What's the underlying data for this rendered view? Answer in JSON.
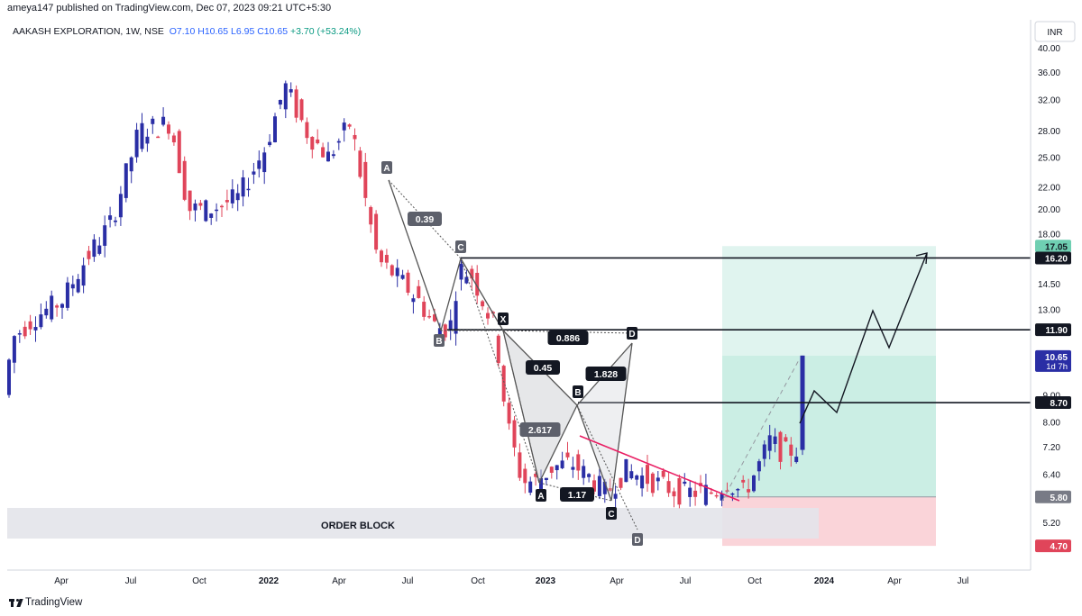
{
  "header": {
    "published_text": "ameya147 published on TradingView.com, Dec 07, 2023 09:21 UTC+5:30",
    "symbol": "AAKASH EXPLORATION, 1W, NSE",
    "ohlc": {
      "open": "O7.10",
      "high": "H10.65",
      "low": "L6.95",
      "close": "C10.65",
      "change": "+3.70 (+53.24%)"
    },
    "currency": "INR"
  },
  "footer": {
    "brand": "TradingView"
  },
  "colors": {
    "up": "#2a2ea5",
    "down": "#e0455a",
    "target_zone": "#b2e6d8",
    "stop_zone": "#f8c6cc",
    "order_block": "#d1d4dc"
  },
  "chart_data": {
    "type": "candlestick",
    "symbol": "AAKASH EXPLORATION",
    "timeframe": "1W",
    "exchange": "NSE",
    "y_axis": {
      "scale": "log",
      "ticks": [
        40.0,
        36.0,
        32.0,
        28.0,
        25.0,
        22.0,
        20.0,
        18.0,
        16.2,
        14.5,
        13.0,
        11.9,
        10.65,
        9.0,
        8.7,
        8.0,
        7.2,
        6.4,
        5.8,
        5.2,
        4.7
      ],
      "tick_labels": [
        "40.00",
        "36.00",
        "32.00",
        "28.00",
        "25.00",
        "22.00",
        "20.00",
        "18.00",
        "14.50",
        "13.00",
        "9.00",
        "8.00",
        "7.20",
        "6.40",
        "5.20"
      ]
    },
    "x_axis": {
      "tick_labels": [
        "Apr",
        "Jul",
        "Oct",
        "2022",
        "Apr",
        "Jul",
        "Oct",
        "2023",
        "Apr",
        "Jul",
        "Oct",
        "2024",
        "Apr",
        "Jul"
      ]
    },
    "price_tags": [
      {
        "value": "17.05",
        "color": "#6fcfb2",
        "text_color": "#131722"
      },
      {
        "value": "16.20",
        "color": "#131722",
        "text_color": "#ffffff"
      },
      {
        "value": "11.90",
        "color": "#131722",
        "text_color": "#ffffff"
      },
      {
        "value": "10.65",
        "value2": "1d 7h",
        "color": "#2a2ea5",
        "text_color": "#ffffff"
      },
      {
        "value": "8.70",
        "color": "#131722",
        "text_color": "#ffffff"
      },
      {
        "value": "5.80",
        "color": "#787b86",
        "text_color": "#ffffff"
      },
      {
        "value": "4.70",
        "color": "#e0455a",
        "text_color": "#ffffff"
      }
    ],
    "horizontal_levels": [
      16.2,
      11.9,
      8.7
    ],
    "position": {
      "entry": 5.8,
      "target": 17.05,
      "stop": 4.7
    },
    "order_block_label": "ORDER BLOCK",
    "harmonic_points": [
      "A",
      "B",
      "C",
      "X",
      "D",
      "B",
      "A",
      "C",
      "D"
    ],
    "ratios": [
      "0.39",
      "0.886",
      "0.45",
      "1.828",
      "2.617",
      "1.17"
    ],
    "last_price": {
      "open": 7.1,
      "high": 10.65,
      "low": 6.95,
      "close": 10.65
    }
  }
}
